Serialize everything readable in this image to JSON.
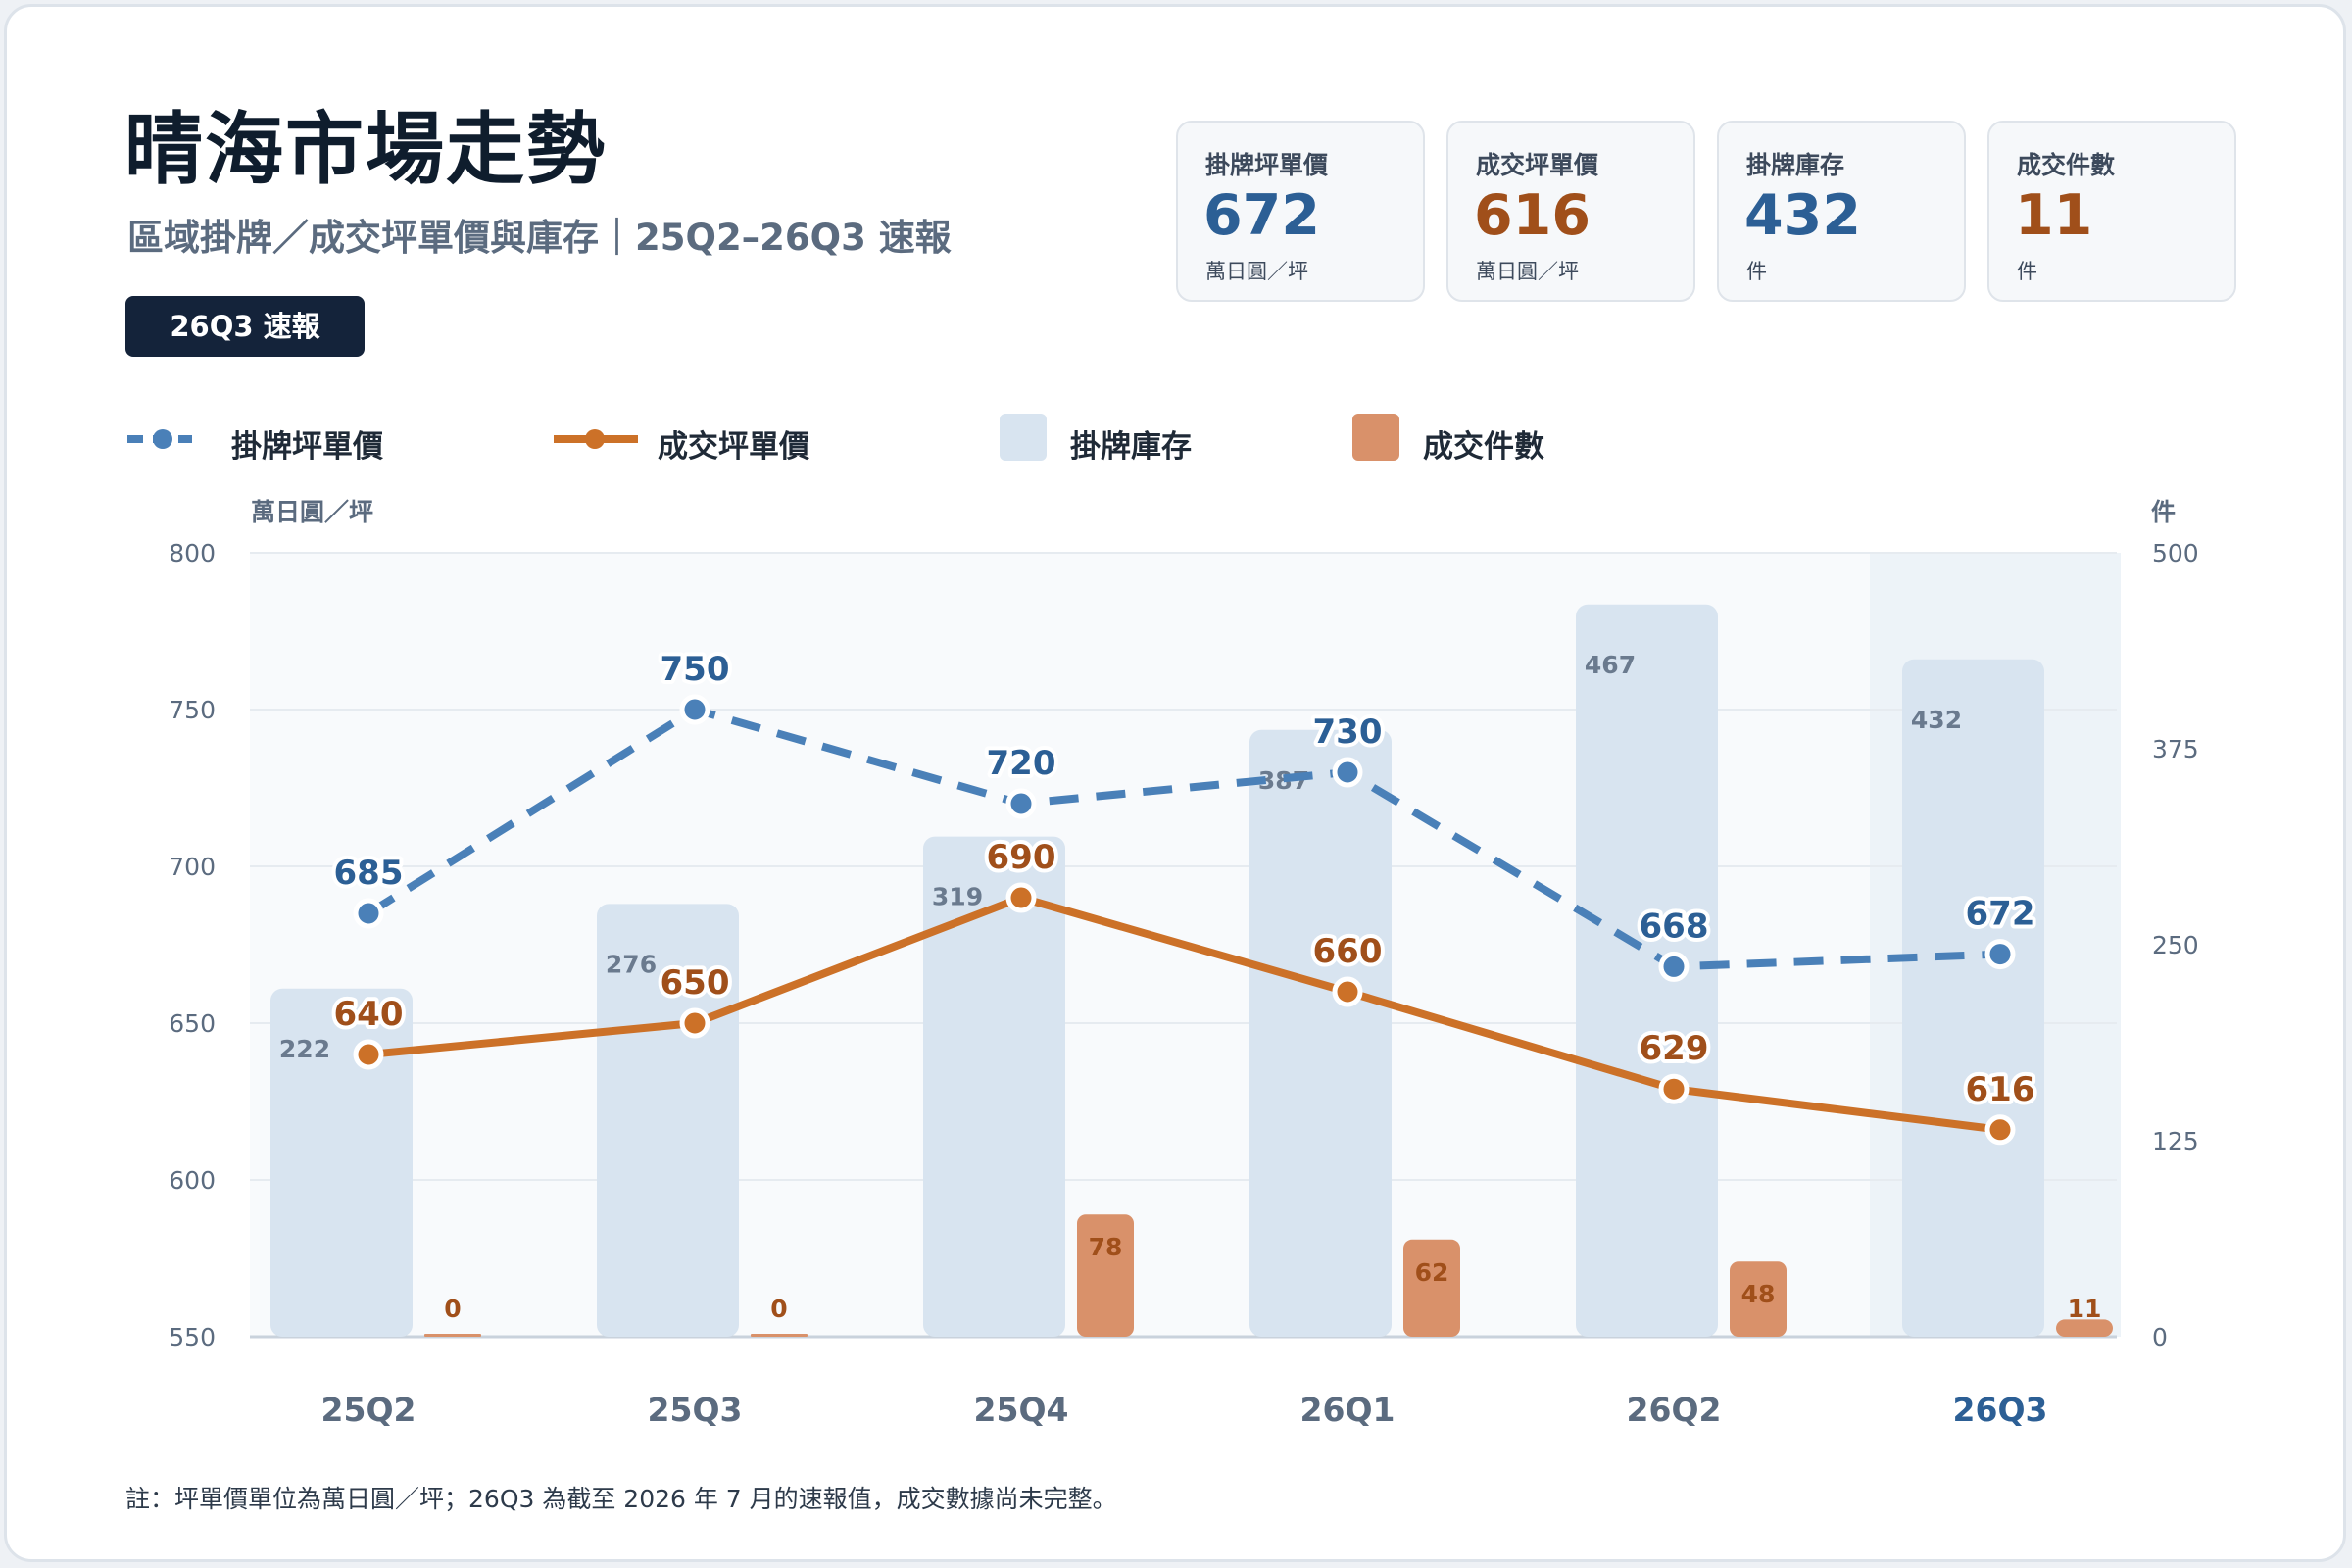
{
  "header": {
    "title": "晴海市場走勢",
    "subtitle": "區域掛牌／成交坪單價與庫存｜25Q2–26Q3 速報",
    "badge": "26Q3 速報"
  },
  "kpis": [
    {
      "label": "掛牌坪單價",
      "value": "672",
      "unit": "萬日圓／坪",
      "color": "#2c5f95"
    },
    {
      "label": "成交坪單價",
      "value": "616",
      "unit": "萬日圓／坪",
      "color": "#a04f1a"
    },
    {
      "label": "掛牌庫存",
      "value": "432",
      "unit": "件",
      "color": "#2c5f95"
    },
    {
      "label": "成交件數",
      "value": "11",
      "unit": "件",
      "color": "#a04f1a"
    }
  ],
  "legend": {
    "listing_price": "掛牌坪單價",
    "deal_price": "成交坪單價",
    "inventory": "掛牌庫存",
    "deals": "成交件數"
  },
  "axis_units": {
    "left": "萬日圓／坪",
    "right": "件"
  },
  "footnote": "註：坪單價單位為萬日圓／坪；26Q3 為截至 2026 年 7 月的速報值，成交數據尚未完整。",
  "colors": {
    "listing": "#4a80b8",
    "listing_text": "#2c5f95",
    "deal": "#cc7128",
    "deal_text": "#a04f1a",
    "inventory_bar": "#d8e4f0",
    "deals_bar": "#d9916a",
    "highlight_bg": "#edf3f8"
  },
  "chart_data": {
    "type": "bar+line",
    "categories": [
      "25Q2",
      "25Q3",
      "25Q4",
      "26Q1",
      "26Q2",
      "26Q3"
    ],
    "highlight_category": "26Q3",
    "y_left": {
      "unit": "萬日圓／坪",
      "lim": [
        550,
        800
      ],
      "ticks": [
        550,
        600,
        650,
        700,
        750,
        800
      ]
    },
    "y_right": {
      "unit": "件",
      "lim": [
        0,
        500
      ],
      "ticks": [
        0,
        125,
        250,
        375,
        500
      ]
    },
    "series": [
      {
        "name": "掛牌坪單價",
        "type": "line",
        "style": "dashed",
        "axis": "left",
        "values": [
          685,
          750,
          720,
          730,
          668,
          672
        ]
      },
      {
        "name": "成交坪單價",
        "type": "line",
        "style": "solid",
        "axis": "left",
        "values": [
          640,
          650,
          690,
          660,
          629,
          616
        ]
      },
      {
        "name": "掛牌庫存",
        "type": "bar",
        "axis": "right",
        "values": [
          222,
          276,
          319,
          387,
          467,
          432
        ]
      },
      {
        "name": "成交件數",
        "type": "bar",
        "axis": "right",
        "values": [
          0,
          0,
          78,
          62,
          48,
          11
        ]
      }
    ],
    "grid": true,
    "legend_position": "top-left"
  }
}
